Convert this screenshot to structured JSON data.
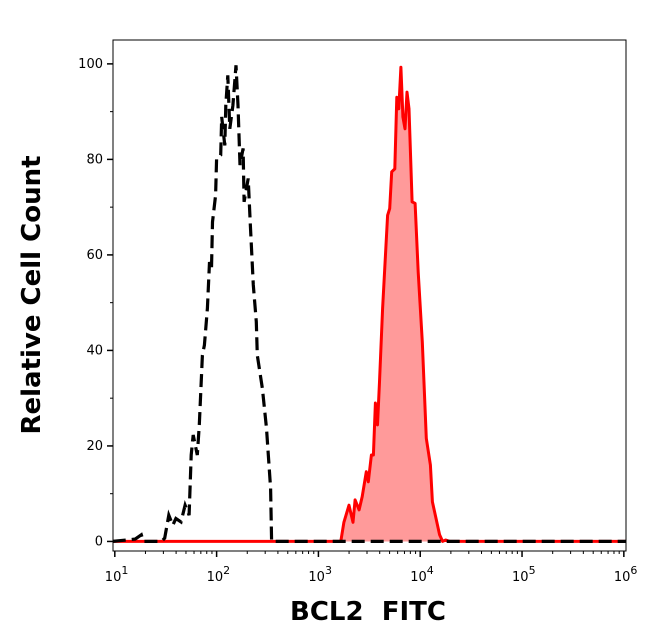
{
  "chart_data": {
    "type": "area",
    "title": "",
    "xlabel": "BCL2  FITC",
    "ylabel": "Relative Cell Count",
    "xscale": "log",
    "xlim": [
      9.6,
      1050000
    ],
    "ylim": [
      -2,
      105
    ],
    "grid": false,
    "legend": "none",
    "x_ticks": [
      {
        "base": "10",
        "exp": "1",
        "value": 10
      },
      {
        "base": "10",
        "exp": "2",
        "value": 100
      },
      {
        "base": "10",
        "exp": "3",
        "value": 1000
      },
      {
        "base": "10",
        "exp": "4",
        "value": 10000
      },
      {
        "base": "10",
        "exp": "5",
        "value": 100000
      },
      {
        "base": "10",
        "exp": "6",
        "value": 1000000
      }
    ],
    "y_ticks": [
      "0",
      "20",
      "40",
      "60",
      "80",
      "100"
    ],
    "series": [
      {
        "style": "dashed-line",
        "color": "#000000",
        "log10_x": [
          0.98,
          1.2,
          1.26,
          1.28,
          1.46,
          1.49,
          1.53,
          1.57,
          1.6,
          1.65,
          1.69,
          1.73,
          1.75,
          1.77,
          1.81,
          1.83,
          1.86,
          1.88,
          1.91,
          1.93,
          1.95,
          1.96,
          1.99,
          2.0,
          2.04,
          2.05,
          2.08,
          2.09,
          2.11,
          2.13,
          2.16,
          2.19,
          2.21,
          2.23,
          2.26,
          2.27,
          2.31,
          2.33,
          2.36,
          2.39,
          2.4,
          2.45,
          2.49,
          2.53,
          2.54,
          6.02
        ],
        "y": [
          0,
          0.5,
          1.4,
          0,
          0,
          0.7,
          5.5,
          3.4,
          4.8,
          4.1,
          7.6,
          5.5,
          18.1,
          22.3,
          18.1,
          24.4,
          39,
          41.1,
          48.8,
          58.5,
          57.2,
          66.9,
          72.5,
          80.2,
          80.9,
          88.9,
          82.9,
          91.3,
          97.6,
          86.4,
          91.3,
          99.7,
          91.3,
          78.8,
          82.3,
          71.1,
          76,
          66.9,
          53.7,
          46,
          39,
          32,
          23.7,
          11.1,
          0,
          0
        ]
      },
      {
        "style": "filled",
        "color": "#ff0000",
        "fill": "#ff9a9a",
        "log10_x": [
          0.98,
          3.22,
          3.25,
          3.3,
          3.34,
          3.36,
          3.4,
          3.43,
          3.47,
          3.49,
          3.52,
          3.54,
          3.56,
          3.58,
          3.6,
          3.63,
          3.68,
          3.7,
          3.72,
          3.75,
          3.77,
          3.79,
          3.81,
          3.83,
          3.85,
          3.87,
          3.89,
          3.92,
          3.95,
          3.98,
          4.02,
          4.06,
          4.1,
          4.12,
          4.19,
          4.22,
          4.25,
          4.29,
          6.02
        ],
        "y": [
          0,
          0,
          4,
          7.6,
          4,
          8.7,
          6.6,
          9.4,
          14.6,
          12.5,
          18.1,
          18.1,
          29,
          24.4,
          33.4,
          48.8,
          68.3,
          69.7,
          77.4,
          78,
          93,
          90.6,
          99.3,
          88.9,
          86.4,
          94.1,
          90.6,
          71.1,
          70.8,
          56.4,
          41.8,
          21.6,
          16,
          8.3,
          1.4,
          0,
          0.3,
          0,
          0
        ]
      }
    ]
  }
}
